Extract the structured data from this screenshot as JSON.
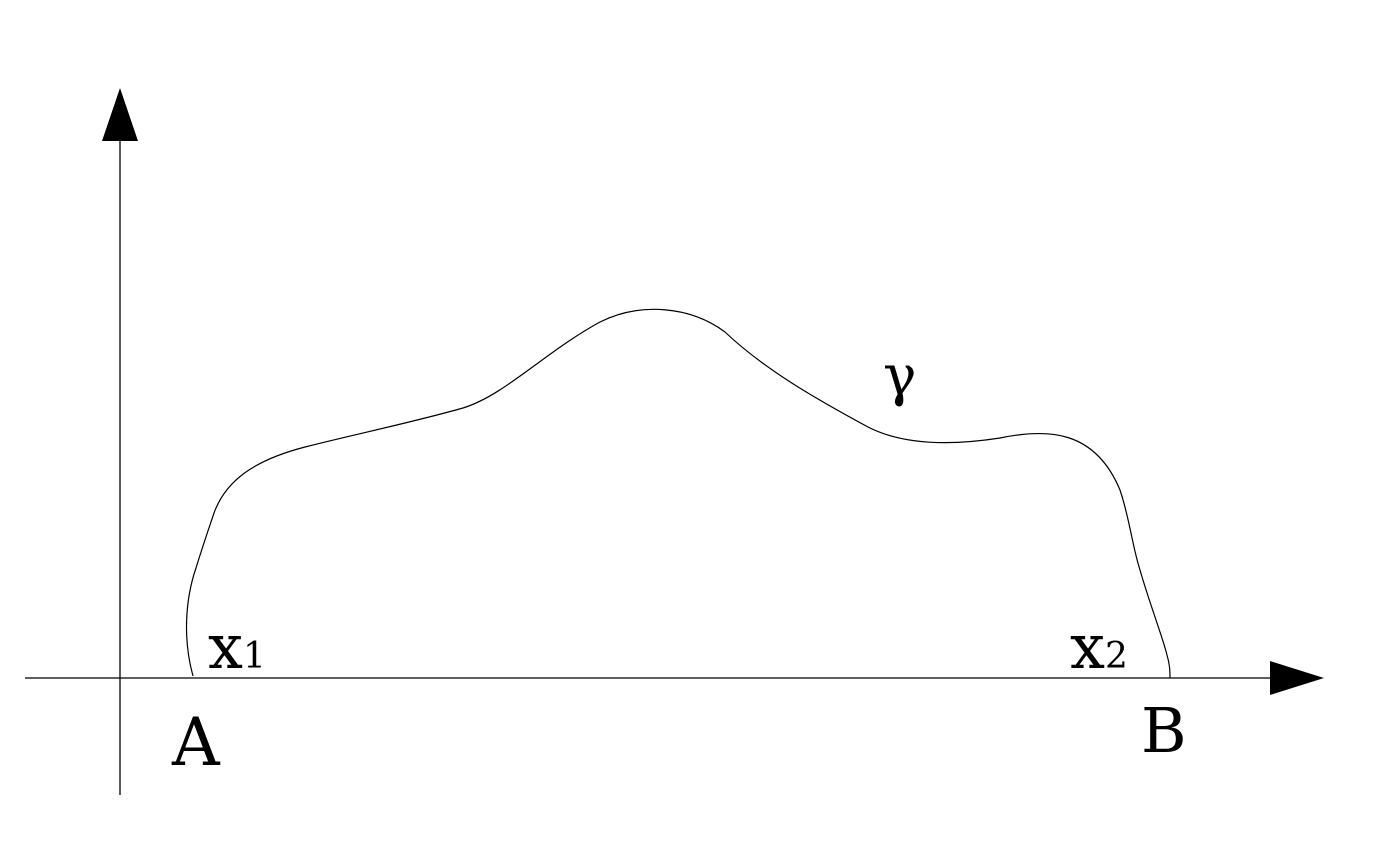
{
  "diagram": {
    "curve_label": "γ",
    "point_a": "A",
    "point_b": "B",
    "x1": {
      "base": "x",
      "sub": "1"
    },
    "x2": {
      "base": "x",
      "sub": "2"
    }
  },
  "colors": {
    "stroke": "#000000",
    "background": "#ffffff"
  }
}
